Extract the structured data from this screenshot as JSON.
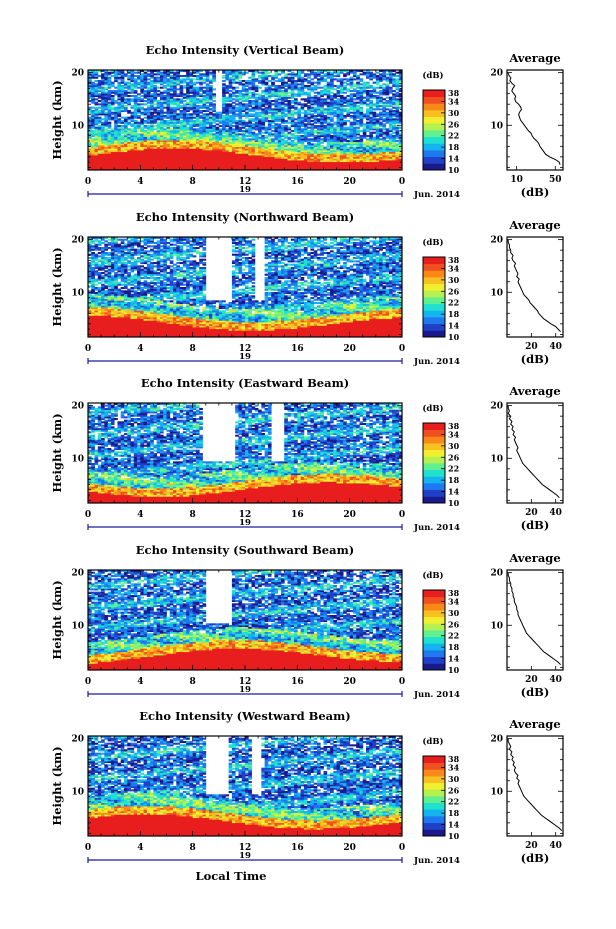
{
  "colorbar": {
    "unit": "(dB)",
    "ticks": [
      "10",
      "14",
      "18",
      "22",
      "26",
      "30",
      "34",
      "38"
    ],
    "colors": [
      "#1a1a8c",
      "#2040c8",
      "#1e78f0",
      "#14b4f0",
      "#20e0d0",
      "#60f090",
      "#b4f050",
      "#f0f030",
      "#f8c020",
      "#f88818",
      "#f05020",
      "#e81e1e"
    ]
  },
  "xaxis": {
    "ticks": [
      "0",
      "4",
      "8",
      "12",
      "16",
      "20",
      "0"
    ],
    "date_label": "19",
    "month_label": "Jun. 2014",
    "xlabel": "Local Time"
  },
  "avg_header": "Average",
  "avg_xlabel": "(dB)",
  "chart_data": [
    {
      "type": "heatmap",
      "title": "Echo Intensity (Vertical Beam)",
      "ylabel": "Height (km)",
      "yticks": [
        "10",
        "20"
      ],
      "ylim": [
        1.5,
        20.5
      ],
      "xlim": [
        0,
        24
      ],
      "clim": [
        10,
        38
      ],
      "gaps": [
        [
          9.8,
          10.2
        ]
      ],
      "gap_top": 12.5,
      "average": {
        "xticks": [
          "10",
          "50"
        ],
        "xlim": [
          0,
          58
        ],
        "profile": [
          [
            2.5,
            55
          ],
          [
            3,
            54
          ],
          [
            3.5,
            50
          ],
          [
            4,
            44
          ],
          [
            4.5,
            40
          ],
          [
            5,
            38
          ],
          [
            5.5,
            36
          ],
          [
            6,
            34
          ],
          [
            6.5,
            33
          ],
          [
            7,
            31
          ],
          [
            7.5,
            28
          ],
          [
            8,
            26
          ],
          [
            8.5,
            25
          ],
          [
            9,
            22
          ],
          [
            9.5,
            20
          ],
          [
            10,
            18
          ],
          [
            10.5,
            16
          ],
          [
            11,
            14
          ],
          [
            11.5,
            13
          ],
          [
            12,
            12
          ],
          [
            12.5,
            13
          ],
          [
            13,
            15
          ],
          [
            13.5,
            14
          ],
          [
            14,
            12
          ],
          [
            14.5,
            9
          ],
          [
            15,
            8
          ],
          [
            15.5,
            9
          ],
          [
            16,
            7
          ],
          [
            16.5,
            5
          ],
          [
            17,
            6
          ],
          [
            17.5,
            8
          ],
          [
            18,
            5
          ],
          [
            18.5,
            3
          ],
          [
            19,
            4
          ],
          [
            19.5,
            2
          ],
          [
            20,
            1
          ]
        ]
      }
    },
    {
      "type": "heatmap",
      "title": "Echo Intensity (Northward Beam)",
      "ylabel": "Height (km)",
      "yticks": [
        "10",
        "20"
      ],
      "ylim": [
        1.5,
        20.5
      ],
      "xlim": [
        0,
        24
      ],
      "clim": [
        10,
        38
      ],
      "gaps": [
        [
          9.0,
          11.0
        ],
        [
          12.8,
          13.5
        ]
      ],
      "gap_top": 8.5,
      "average": {
        "xticks": [
          "20",
          "40"
        ],
        "xlim": [
          0,
          46
        ],
        "profile": [
          [
            2.5,
            44
          ],
          [
            3,
            42
          ],
          [
            3.5,
            40
          ],
          [
            4,
            36
          ],
          [
            4.5,
            33
          ],
          [
            5,
            30
          ],
          [
            5.5,
            28
          ],
          [
            6,
            26
          ],
          [
            6.5,
            25
          ],
          [
            7,
            23
          ],
          [
            7.5,
            21
          ],
          [
            8,
            19
          ],
          [
            8.5,
            18
          ],
          [
            9,
            16
          ],
          [
            9.5,
            14
          ],
          [
            10,
            13
          ],
          [
            10.5,
            12
          ],
          [
            11,
            11
          ],
          [
            11.5,
            10
          ],
          [
            12,
            9
          ],
          [
            12.5,
            10
          ],
          [
            13,
            8
          ],
          [
            13.5,
            9
          ],
          [
            14,
            8
          ],
          [
            14.5,
            7
          ],
          [
            15,
            6
          ],
          [
            15.5,
            7
          ],
          [
            16,
            5
          ],
          [
            16.5,
            4
          ],
          [
            17,
            5
          ],
          [
            17.5,
            3
          ],
          [
            18,
            3
          ],
          [
            18.5,
            2
          ],
          [
            19,
            2
          ],
          [
            19.5,
            1
          ],
          [
            20,
            1
          ]
        ]
      }
    },
    {
      "type": "heatmap",
      "title": "Echo Intensity (Eastward Beam)",
      "ylabel": "Height (km)",
      "yticks": [
        "10",
        "20"
      ],
      "ylim": [
        1.5,
        20.5
      ],
      "xlim": [
        0,
        24
      ],
      "clim": [
        10,
        38
      ],
      "gaps": [
        [
          8.8,
          11.2
        ],
        [
          14.0,
          15.0
        ]
      ],
      "gap_top": 9.5,
      "average": {
        "xticks": [
          "20",
          "40"
        ],
        "xlim": [
          0,
          46
        ],
        "profile": [
          [
            2.5,
            43
          ],
          [
            3,
            41
          ],
          [
            3.5,
            38
          ],
          [
            4,
            35
          ],
          [
            4.5,
            32
          ],
          [
            5,
            29
          ],
          [
            5.5,
            27
          ],
          [
            6,
            25
          ],
          [
            6.5,
            23
          ],
          [
            7,
            21
          ],
          [
            7.5,
            19
          ],
          [
            8,
            17
          ],
          [
            8.5,
            15
          ],
          [
            9,
            13
          ],
          [
            9.5,
            12
          ],
          [
            10,
            11
          ],
          [
            10.5,
            10
          ],
          [
            11,
            9
          ],
          [
            11.5,
            8
          ],
          [
            12,
            9
          ],
          [
            12.5,
            8
          ],
          [
            13,
            7
          ],
          [
            13.5,
            6
          ],
          [
            14,
            7
          ],
          [
            14.5,
            5
          ],
          [
            15,
            6
          ],
          [
            15.5,
            4
          ],
          [
            16,
            5
          ],
          [
            16.5,
            3
          ],
          [
            17,
            4
          ],
          [
            17.5,
            2
          ],
          [
            18,
            3
          ],
          [
            18.5,
            1
          ],
          [
            19,
            2
          ],
          [
            19.5,
            1
          ],
          [
            20,
            1
          ]
        ]
      }
    },
    {
      "type": "heatmap",
      "title": "Echo Intensity (Southward Beam)",
      "ylabel": "Height (km)",
      "yticks": [
        "10",
        "20"
      ],
      "ylim": [
        1.5,
        20.5
      ],
      "xlim": [
        0,
        24
      ],
      "clim": [
        10,
        38
      ],
      "gaps": [
        [
          9.0,
          11.0
        ]
      ],
      "gap_top": 10.5,
      "average": {
        "xticks": [
          "20",
          "40"
        ],
        "xlim": [
          0,
          46
        ],
        "profile": [
          [
            2.5,
            44
          ],
          [
            3,
            42
          ],
          [
            3.5,
            39
          ],
          [
            4,
            36
          ],
          [
            4.5,
            33
          ],
          [
            5,
            30
          ],
          [
            5.5,
            28
          ],
          [
            6,
            26
          ],
          [
            6.5,
            24
          ],
          [
            7,
            22
          ],
          [
            7.5,
            20
          ],
          [
            8,
            18
          ],
          [
            8.5,
            16
          ],
          [
            9,
            15
          ],
          [
            9.5,
            14
          ],
          [
            10,
            13
          ],
          [
            10.5,
            12
          ],
          [
            11,
            11
          ],
          [
            11.5,
            10
          ],
          [
            12,
            9
          ],
          [
            12.5,
            9
          ],
          [
            13,
            8
          ],
          [
            13.5,
            8
          ],
          [
            14,
            7
          ],
          [
            14.5,
            6
          ],
          [
            15,
            6
          ],
          [
            15.5,
            5
          ],
          [
            16,
            5
          ],
          [
            16.5,
            4
          ],
          [
            17,
            4
          ],
          [
            17.5,
            3
          ],
          [
            18,
            3
          ],
          [
            18.5,
            2
          ],
          [
            19,
            2
          ],
          [
            19.5,
            1
          ],
          [
            20,
            1
          ]
        ]
      }
    },
    {
      "type": "heatmap",
      "title": "Echo Intensity (Westward Beam)",
      "ylabel": "Height (km)",
      "yticks": [
        "10",
        "20"
      ],
      "ylim": [
        1.5,
        20.5
      ],
      "xlim": [
        0,
        24
      ],
      "clim": [
        10,
        38
      ],
      "gaps": [
        [
          9.0,
          10.8
        ],
        [
          12.5,
          13.3
        ]
      ],
      "gap_top": 9.5,
      "average": {
        "xticks": [
          "20",
          "40"
        ],
        "xlim": [
          0,
          46
        ],
        "profile": [
          [
            2.5,
            45
          ],
          [
            3,
            43
          ],
          [
            3.5,
            40
          ],
          [
            4,
            37
          ],
          [
            4.5,
            34
          ],
          [
            5,
            31
          ],
          [
            5.5,
            28
          ],
          [
            6,
            26
          ],
          [
            6.5,
            24
          ],
          [
            7,
            22
          ],
          [
            7.5,
            20
          ],
          [
            8,
            18
          ],
          [
            8.5,
            16
          ],
          [
            9,
            14
          ],
          [
            9.5,
            13
          ],
          [
            10,
            12
          ],
          [
            10.5,
            11
          ],
          [
            11,
            10
          ],
          [
            11.5,
            9
          ],
          [
            12,
            10
          ],
          [
            12.5,
            8
          ],
          [
            13,
            9
          ],
          [
            13.5,
            7
          ],
          [
            14,
            6
          ],
          [
            14.5,
            7
          ],
          [
            15,
            5
          ],
          [
            15.5,
            6
          ],
          [
            16,
            4
          ],
          [
            16.5,
            5
          ],
          [
            17,
            3
          ],
          [
            17.5,
            4
          ],
          [
            18,
            2
          ],
          [
            18.5,
            3
          ],
          [
            19,
            2
          ],
          [
            19.5,
            1
          ],
          [
            20,
            1
          ]
        ]
      }
    }
  ]
}
